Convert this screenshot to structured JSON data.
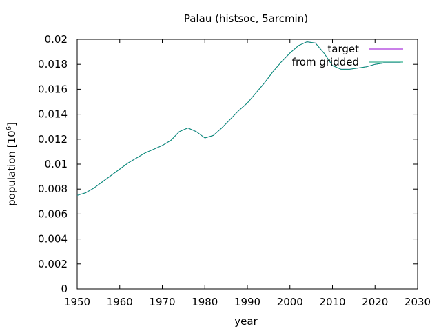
{
  "chart_data": {
    "type": "line",
    "title": "Palau (histsoc, 5arcmin)",
    "xlabel": "year",
    "ylabel_main": "population [10",
    "ylabel_exp": "6",
    "ylabel_close": "]",
    "xlim": [
      1950,
      2030
    ],
    "ylim": [
      0,
      0.02
    ],
    "xticks": [
      1950,
      1960,
      1970,
      1980,
      1990,
      2000,
      2010,
      2020,
      2030
    ],
    "yticks": [
      0,
      0.002,
      0.004,
      0.006,
      0.008,
      0.01,
      0.012,
      0.014,
      0.016,
      0.018,
      0.02
    ],
    "ytick_labels": [
      "0",
      "0.002",
      "0.004",
      "0.006",
      "0.008",
      "0.01",
      "0.012",
      "0.014",
      "0.016",
      "0.018",
      "0.02"
    ],
    "grid": false,
    "legend_position": "top-right",
    "series": [
      {
        "name": "target",
        "color": "#9400d3",
        "x": [
          1950,
          1952,
          1954,
          1956,
          1958,
          1960,
          1962,
          1964,
          1966,
          1968,
          1970,
          1972,
          1974,
          1976,
          1978,
          1980,
          1982,
          1984,
          1986,
          1988,
          1990,
          1992,
          1994,
          1996,
          1998,
          2000,
          2002,
          2004,
          2006,
          2008,
          2010,
          2012,
          2014,
          2016,
          2018,
          2020,
          2022,
          2024,
          2026
        ],
        "y": [
          0.0075,
          0.0077,
          0.0081,
          0.0086,
          0.0091,
          0.0096,
          0.0101,
          0.0105,
          0.0109,
          0.0112,
          0.0115,
          0.0119,
          0.0126,
          0.0129,
          0.0126,
          0.0121,
          0.0123,
          0.0129,
          0.0136,
          0.0143,
          0.0149,
          0.0157,
          0.0165,
          0.0174,
          0.0182,
          0.0189,
          0.0195,
          0.0198,
          0.0197,
          0.0189,
          0.0179,
          0.0176,
          0.0176,
          0.0177,
          0.0178,
          0.018,
          0.0181,
          0.0181,
          0.0181
        ]
      },
      {
        "name": "from gridded",
        "color": "#009e73",
        "x": [
          1950,
          1952,
          1954,
          1956,
          1958,
          1960,
          1962,
          1964,
          1966,
          1968,
          1970,
          1972,
          1974,
          1976,
          1978,
          1980,
          1982,
          1984,
          1986,
          1988,
          1990,
          1992,
          1994,
          1996,
          1998,
          2000,
          2002,
          2004,
          2006,
          2008,
          2010,
          2012,
          2014,
          2016,
          2018,
          2020,
          2022,
          2024,
          2026
        ],
        "y": [
          0.0075,
          0.0077,
          0.0081,
          0.0086,
          0.0091,
          0.0096,
          0.0101,
          0.0105,
          0.0109,
          0.0112,
          0.0115,
          0.0119,
          0.0126,
          0.0129,
          0.0126,
          0.0121,
          0.0123,
          0.0129,
          0.0136,
          0.0143,
          0.0149,
          0.0157,
          0.0165,
          0.0174,
          0.0182,
          0.0189,
          0.0195,
          0.0198,
          0.0197,
          0.0189,
          0.0179,
          0.0176,
          0.0176,
          0.0177,
          0.0178,
          0.018,
          0.0181,
          0.0181,
          0.0181
        ]
      }
    ]
  }
}
